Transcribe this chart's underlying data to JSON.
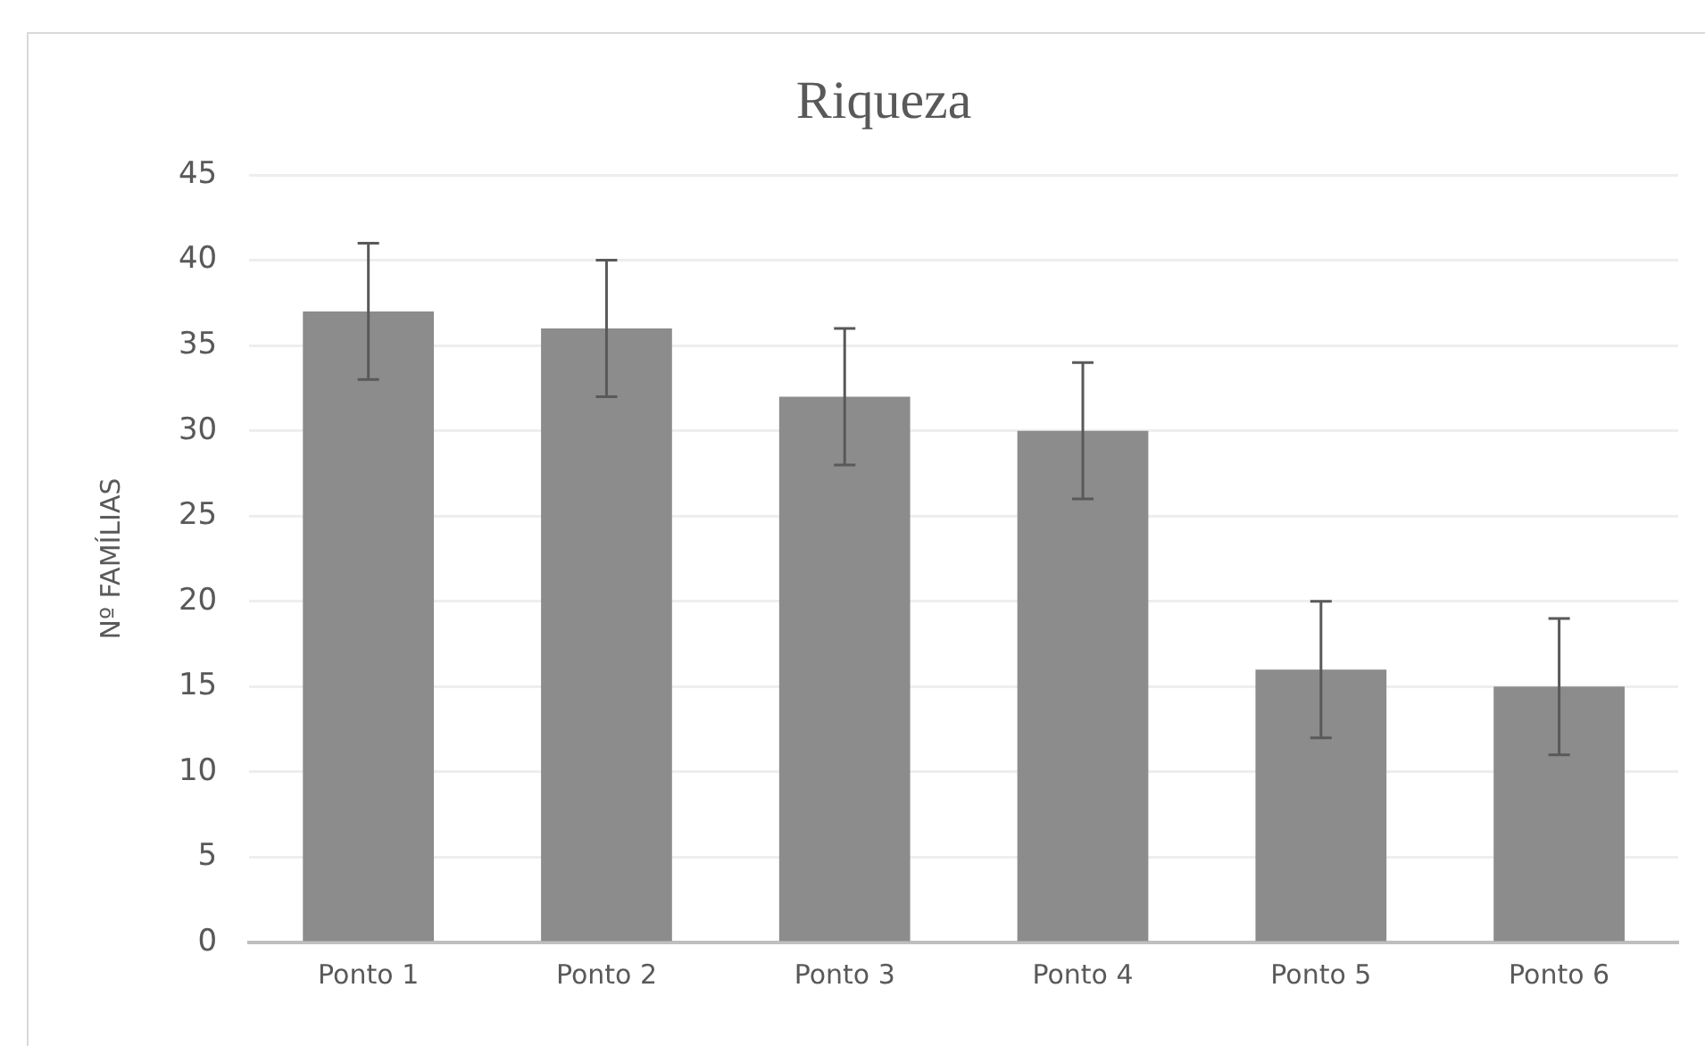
{
  "chart_data": {
    "type": "bar",
    "title": "Riqueza",
    "ylabel": "Nº FAMÍLIAS",
    "categories": [
      "Ponto 1",
      "Ponto 2",
      "Ponto 3",
      "Ponto 4",
      "Ponto 5",
      "Ponto 6"
    ],
    "values": [
      37,
      36,
      32,
      30,
      16,
      15
    ],
    "errors": [
      4,
      4,
      4,
      4,
      4,
      4
    ],
    "color": "#8c8c8c",
    "ylim": [
      0,
      45
    ],
    "yticks": [
      0,
      5,
      10,
      15,
      20,
      25,
      30,
      35,
      40,
      45
    ],
    "grid": "y",
    "legend": false
  }
}
